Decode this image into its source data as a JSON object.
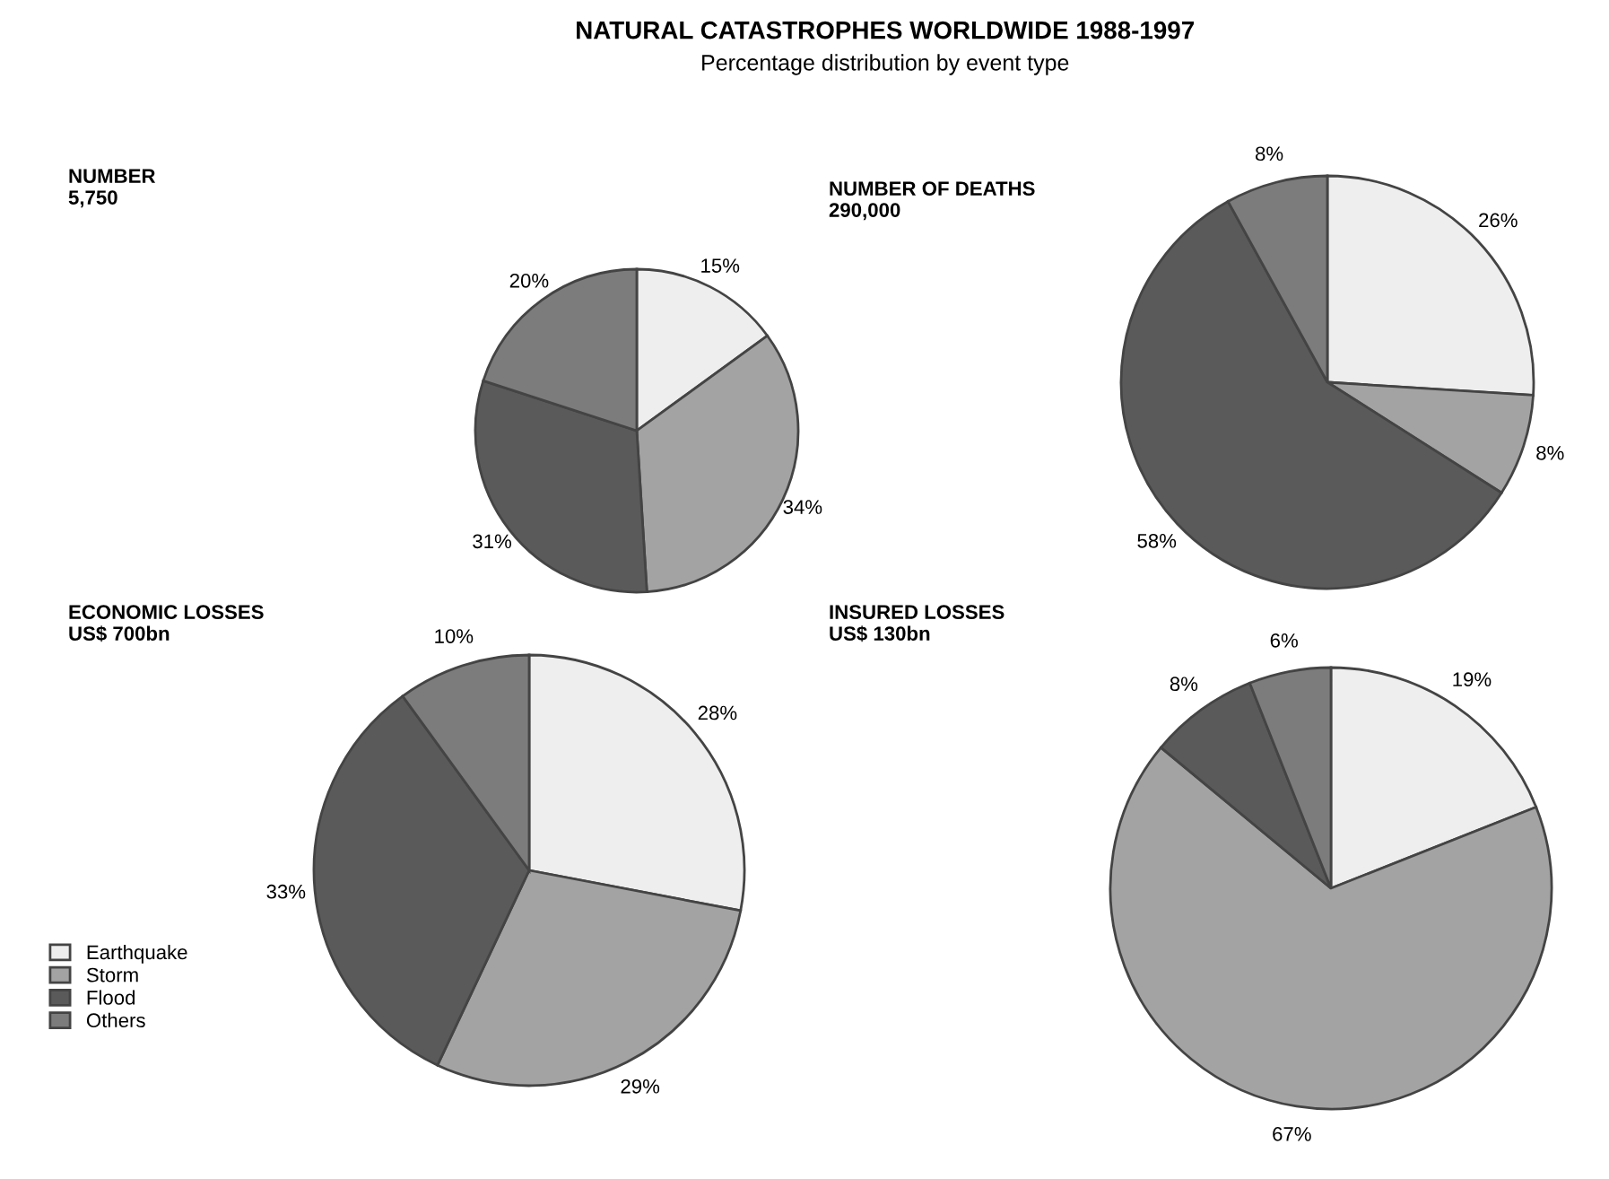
{
  "chart_data": [
    {
      "type": "other",
      "title": "NATURAL CATASTROPHES WORLDWIDE 1988-1997",
      "subtitle": "Percentage distribution by event type"
    },
    {
      "type": "pie",
      "title": "NUMBER",
      "subtitle": "5,750",
      "categories": [
        "Earthquake",
        "Storm",
        "Flood",
        "Others"
      ],
      "values": [
        15,
        34,
        31,
        20
      ],
      "value_labels": [
        "15%",
        "34%",
        "31%",
        "20%"
      ],
      "colors": [
        "#eeeeee",
        "#a3a3a3",
        "#5a5a5a",
        "#7c7c7c"
      ],
      "legend": "bottom left"
    },
    {
      "type": "pie",
      "title": "NUMBER OF DEATHS",
      "subtitle": "290,000",
      "categories": [
        null,
        null,
        null,
        null
      ],
      "values": [
        26,
        8,
        58,
        8
      ],
      "value_labels": [
        "26%",
        "8%",
        "58%",
        "8%"
      ],
      "colors": [
        "#eeeeee",
        "#a3a3a3",
        "#5a5a5a",
        "#7c7c7c"
      ]
    },
    {
      "type": "pie",
      "title": "ECONOMIC LOSSES",
      "subtitle": "US$ 700bn",
      "categories": [
        null,
        null,
        null,
        null
      ],
      "values": [
        28,
        29,
        33,
        10
      ],
      "value_labels": [
        "28%",
        "29%",
        "33%",
        "10%"
      ],
      "colors": [
        "#eeeeee",
        "#a3a3a3",
        "#5a5a5a",
        "#7c7c7c"
      ]
    },
    {
      "type": "pie",
      "title": "INSURED LOSSES",
      "subtitle": "US$ 130bn",
      "categories": [
        null,
        null,
        null,
        null
      ],
      "values": [
        19,
        67,
        8,
        6
      ],
      "value_labels": [
        "19%",
        "67%",
        "8%",
        "6%"
      ],
      "colors": [
        "#eeeeee",
        "#a3a3a3",
        "#5a5a5a",
        "#7c7c7c"
      ]
    }
  ]
}
